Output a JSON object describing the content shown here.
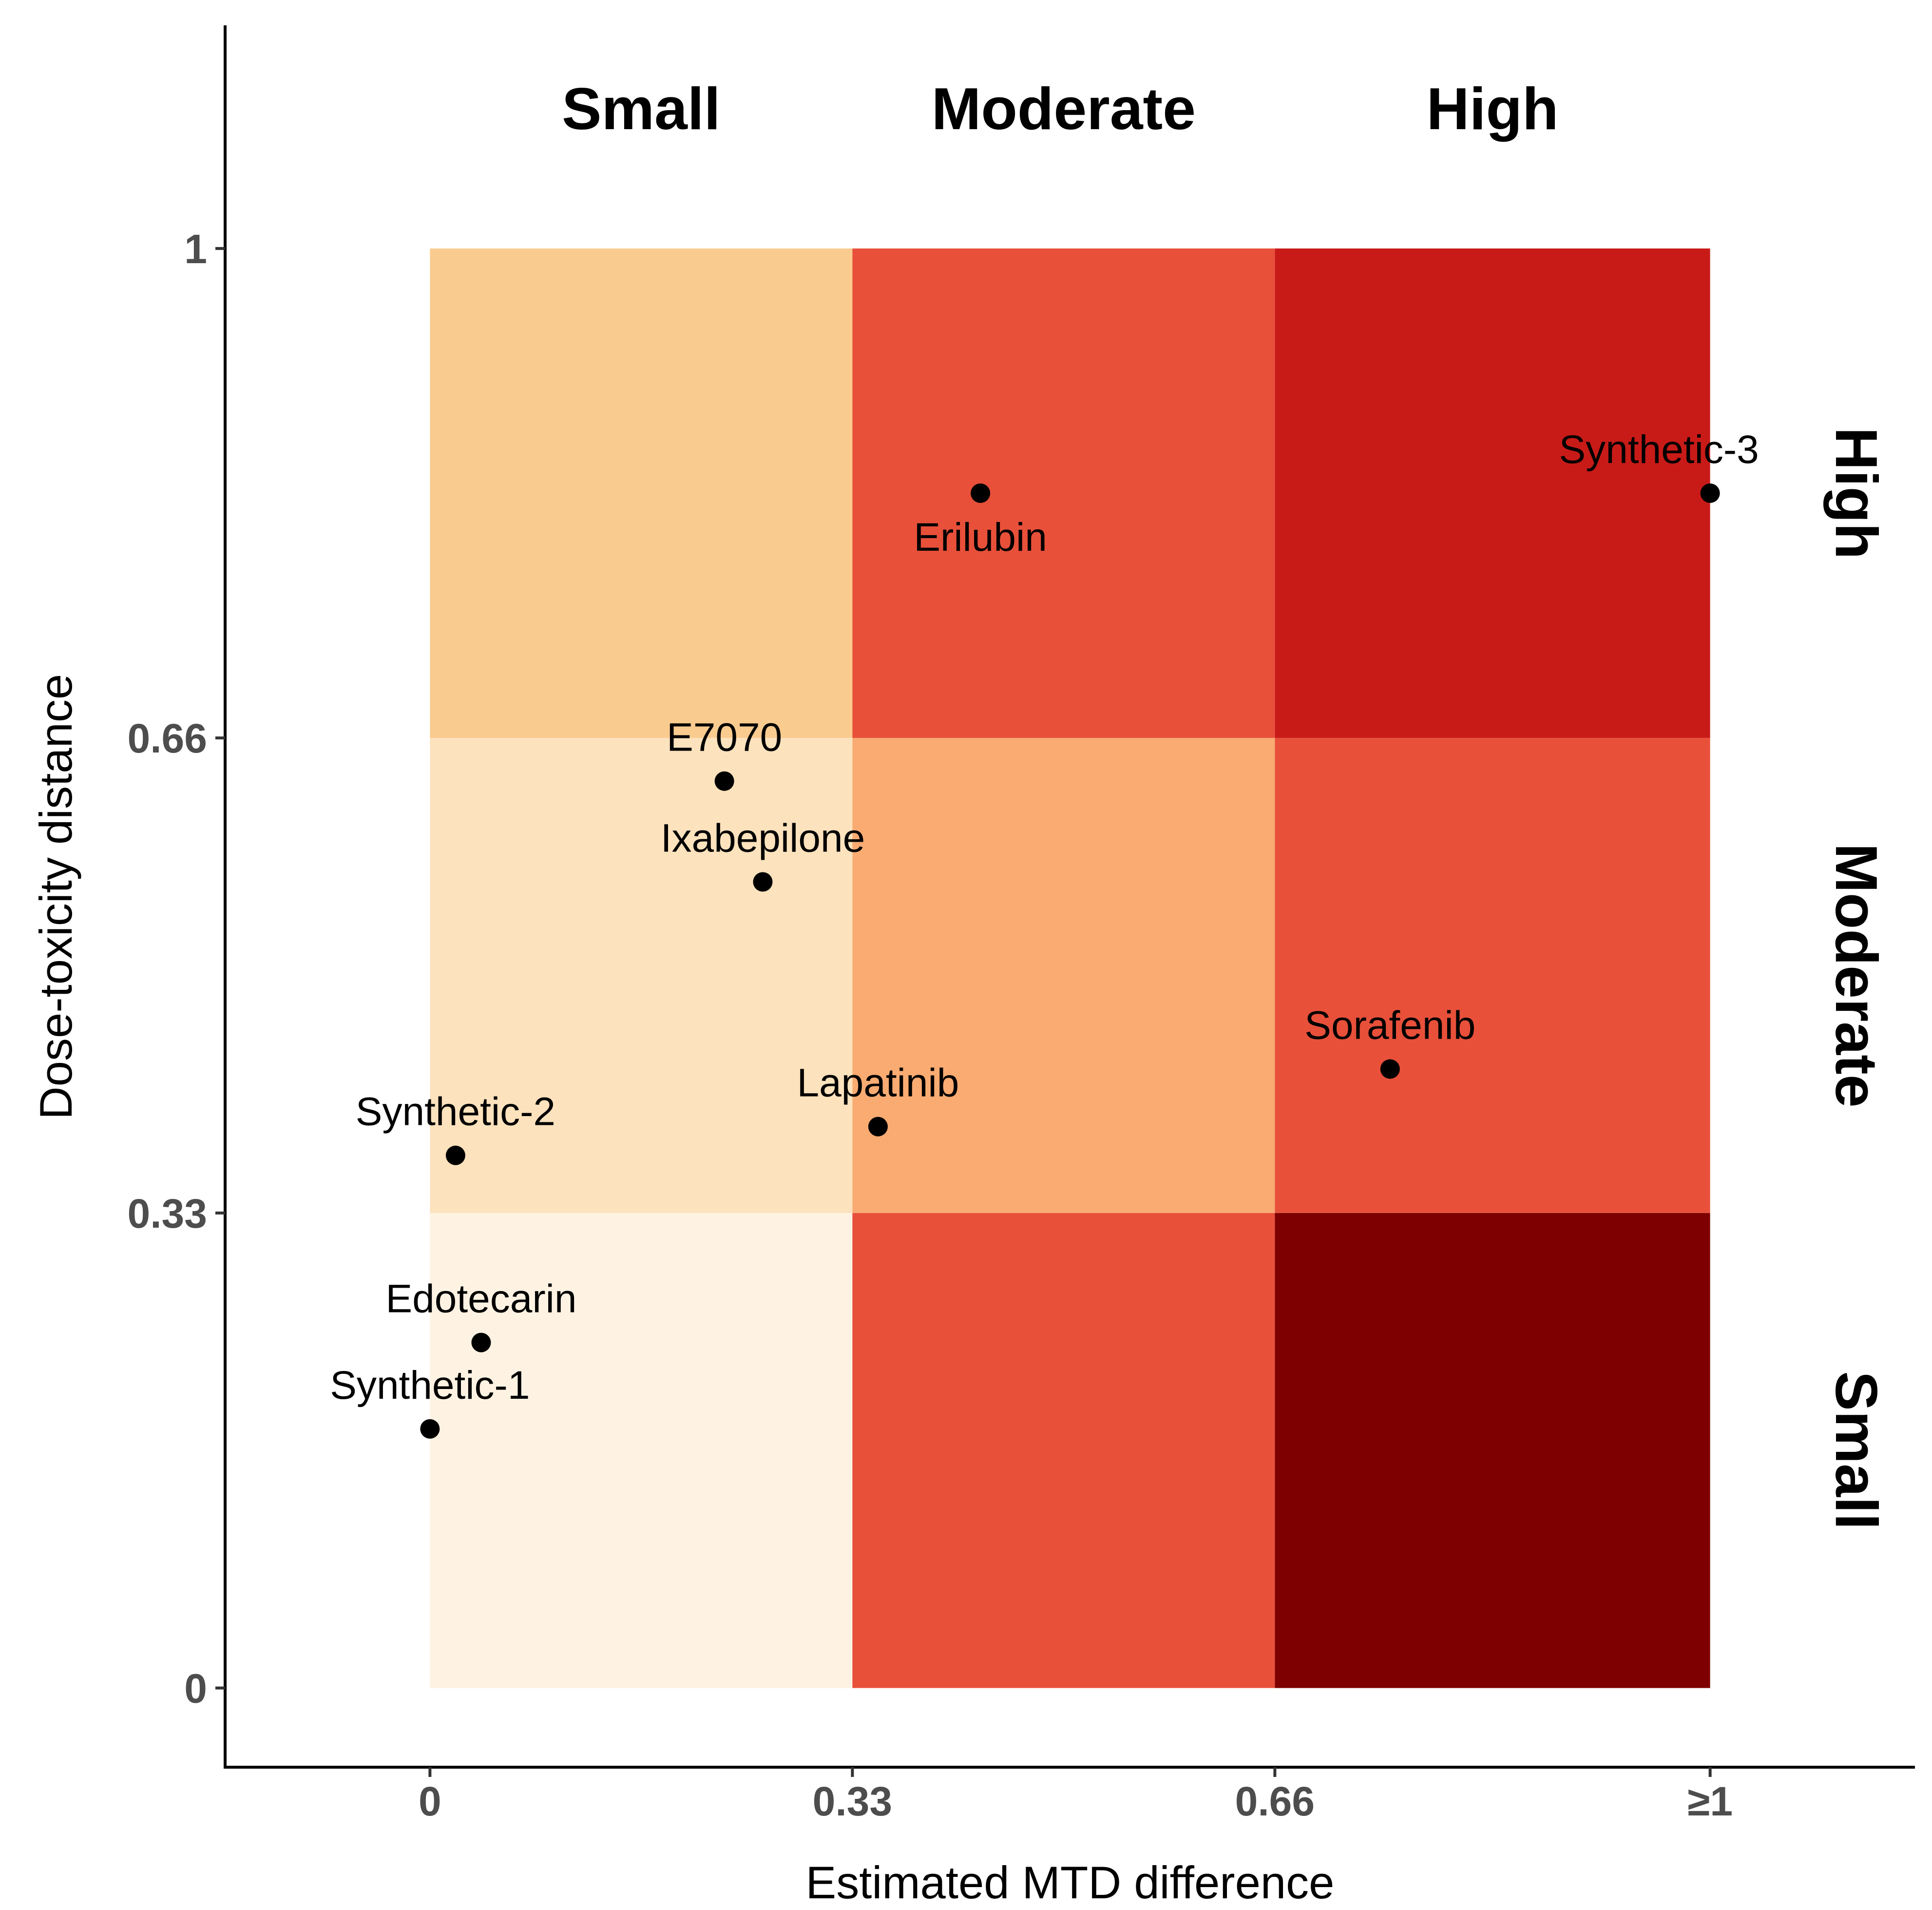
{
  "chart_data": {
    "type": "scatter",
    "xlabel": "Estimated MTD difference",
    "ylabel": "Dose-toxicity distance",
    "x_ticks": [
      {
        "value": 0,
        "label": "0"
      },
      {
        "value": 0.33,
        "label": "0.33"
      },
      {
        "value": 0.66,
        "label": "0.66"
      },
      {
        "value": 1,
        "label": "≥1"
      }
    ],
    "y_ticks": [
      {
        "value": 0,
        "label": "0"
      },
      {
        "value": 0.33,
        "label": "0.33"
      },
      {
        "value": 0.66,
        "label": "0.66"
      },
      {
        "value": 1,
        "label": "1"
      }
    ],
    "xlim": [
      -0.16,
      1.16
    ],
    "ylim": [
      -0.055,
      1.155
    ],
    "column_headers": [
      "Small",
      "Moderate",
      "High"
    ],
    "row_headers": [
      "High",
      "Moderate",
      "Small"
    ],
    "cells": [
      {
        "x0": 0,
        "x1": 0.33,
        "y0": 0,
        "y1": 0.33,
        "color": "#fef3e3"
      },
      {
        "x0": 0.33,
        "x1": 0.66,
        "y0": 0,
        "y1": 0.33,
        "color": "#e8503a"
      },
      {
        "x0": 0.66,
        "x1": 1,
        "y0": 0,
        "y1": 0.33,
        "color": "#7f0000"
      },
      {
        "x0": 0,
        "x1": 0.33,
        "y0": 0.33,
        "y1": 0.66,
        "color": "#fce2bd"
      },
      {
        "x0": 0.33,
        "x1": 0.66,
        "y0": 0.33,
        "y1": 0.66,
        "color": "#faab72"
      },
      {
        "x0": 0.66,
        "x1": 1,
        "y0": 0.33,
        "y1": 0.66,
        "color": "#e8503a"
      },
      {
        "x0": 0,
        "x1": 0.33,
        "y0": 0.66,
        "y1": 1,
        "color": "#facb8f"
      },
      {
        "x0": 0.33,
        "x1": 0.66,
        "y0": 0.66,
        "y1": 1,
        "color": "#e8503a"
      },
      {
        "x0": 0.66,
        "x1": 1,
        "y0": 0.66,
        "y1": 1,
        "color": "#c81b18"
      }
    ],
    "points": [
      {
        "label": "Synthetic-1",
        "x": 0.0,
        "y": 0.18,
        "label_pos": "above"
      },
      {
        "label": "Edotecarin",
        "x": 0.04,
        "y": 0.24,
        "label_pos": "above"
      },
      {
        "label": "Synthetic-2",
        "x": 0.02,
        "y": 0.37,
        "label_pos": "above"
      },
      {
        "label": "Lapatinib",
        "x": 0.35,
        "y": 0.39,
        "label_pos": "above"
      },
      {
        "label": "Ixabepilone",
        "x": 0.26,
        "y": 0.56,
        "label_pos": "above"
      },
      {
        "label": "E7070",
        "x": 0.23,
        "y": 0.63,
        "label_pos": "above"
      },
      {
        "label": "Sorafenib",
        "x": 0.75,
        "y": 0.43,
        "label_pos": "above"
      },
      {
        "label": "Erilubin",
        "x": 0.43,
        "y": 0.83,
        "label_pos": "below"
      },
      {
        "label": "Synthetic-3",
        "x": 1.0,
        "y": 0.83,
        "label_pos": "above-left"
      }
    ],
    "grid": false,
    "legend": "none"
  }
}
